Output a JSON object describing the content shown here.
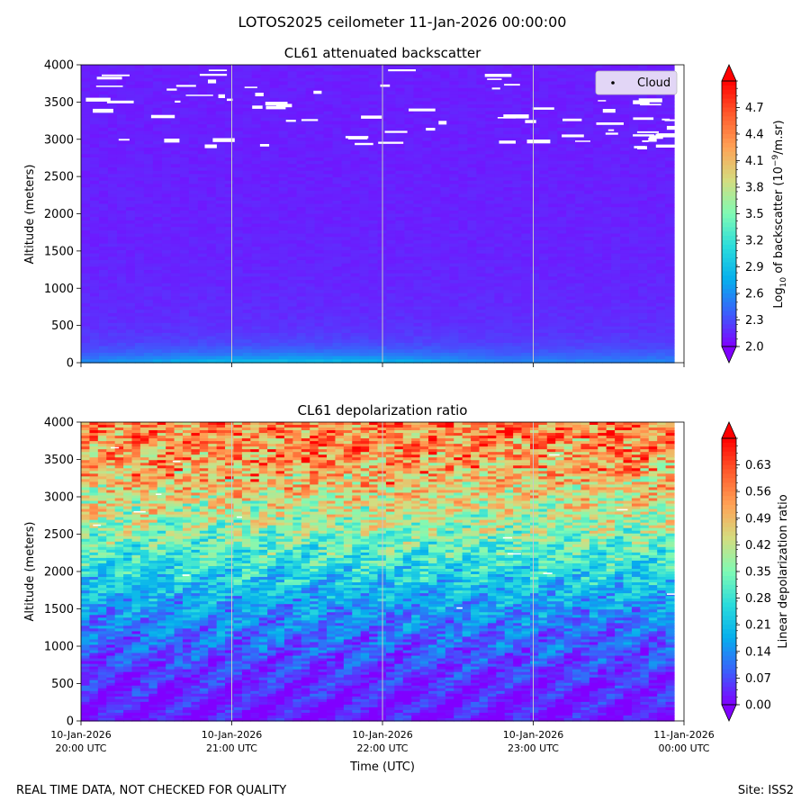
{
  "suptitle": "LOTOS2025 ceilometer 11-Jan-2026 00:00:00",
  "footer": {
    "left": "REAL TIME DATA, NOT CHECKED FOR QUALITY",
    "right": "Site: ISS2"
  },
  "colors": {
    "cloud": "#ffffff",
    "vline": "#c8c8c8",
    "cmap": [
      "#8000ff",
      "#3b5ffb",
      "#06aeed",
      "#2adcdc",
      "#7ffab4",
      "#d4dc7f",
      "#ffa256",
      "#ff5a2c",
      "#ff0000"
    ]
  },
  "chart_data": [
    {
      "type": "heatmap",
      "title": "CL61 attenuated backscatter",
      "ylabel": "Altitude (meters)",
      "xlabel": "",
      "xlim": [
        "10-Jan-2026 20:00 UTC",
        "11-Jan-2026 00:00 UTC"
      ],
      "ylim": [
        0,
        4000
      ],
      "yticks": [
        "0",
        "500",
        "1000",
        "1500",
        "2000",
        "2500",
        "3000",
        "3500",
        "4000"
      ],
      "colorbar": {
        "label_prefix": "Log",
        "label_sub": "10",
        "label_mid": " of backscatter (10",
        "label_sup": "−9",
        "label_suffix": "/m.sr)",
        "range": [
          2.0,
          5.0
        ],
        "ticks": [
          "2.0",
          "2.3",
          "2.6",
          "2.9",
          "3.2",
          "3.5",
          "3.8",
          "4.1",
          "4.4",
          "4.7"
        ],
        "extend": "both"
      },
      "legend": {
        "label": "Cloud",
        "placement": "top-right"
      },
      "description_values": "Low values (~2.0–2.3) over most of the column; enhanced near surface (~2.6–2.9) below 300 m; scattered cloud points 2900–3900 m"
    },
    {
      "type": "heatmap",
      "title": "CL61 depolarization ratio",
      "ylabel": "Altitude (meters)",
      "xlabel": "Time (UTC)",
      "xlim": [
        "10-Jan-2026 20:00 UTC",
        "11-Jan-2026 00:00 UTC"
      ],
      "ylim": [
        0,
        4000
      ],
      "yticks": [
        "0",
        "500",
        "1000",
        "1500",
        "2000",
        "2500",
        "3000",
        "3500",
        "4000"
      ],
      "xticks": [
        {
          "date": "10-Jan-2026",
          "time": "20:00 UTC"
        },
        {
          "date": "10-Jan-2026",
          "time": "21:00 UTC"
        },
        {
          "date": "10-Jan-2026",
          "time": "22:00 UTC"
        },
        {
          "date": "10-Jan-2026",
          "time": "23:00 UTC"
        },
        {
          "date": "11-Jan-2026",
          "time": "00:00 UTC"
        }
      ],
      "colorbar": {
        "label": "Linear depolarization ratio",
        "range": [
          0.0,
          0.7
        ],
        "ticks": [
          "0.00",
          "0.07",
          "0.14",
          "0.21",
          "0.28",
          "0.35",
          "0.42",
          "0.49",
          "0.56",
          "0.63"
        ],
        "extend": "both"
      },
      "profile": [
        {
          "altitude": 0,
          "ratio": 0.02
        },
        {
          "altitude": 500,
          "ratio": 0.04
        },
        {
          "altitude": 1000,
          "ratio": 0.09
        },
        {
          "altitude": 1500,
          "ratio": 0.15
        },
        {
          "altitude": 2000,
          "ratio": 0.25
        },
        {
          "altitude": 2500,
          "ratio": 0.36
        },
        {
          "altitude": 3000,
          "ratio": 0.45
        },
        {
          "altitude": 3500,
          "ratio": 0.52
        },
        {
          "altitude": 4000,
          "ratio": 0.56
        }
      ]
    }
  ]
}
